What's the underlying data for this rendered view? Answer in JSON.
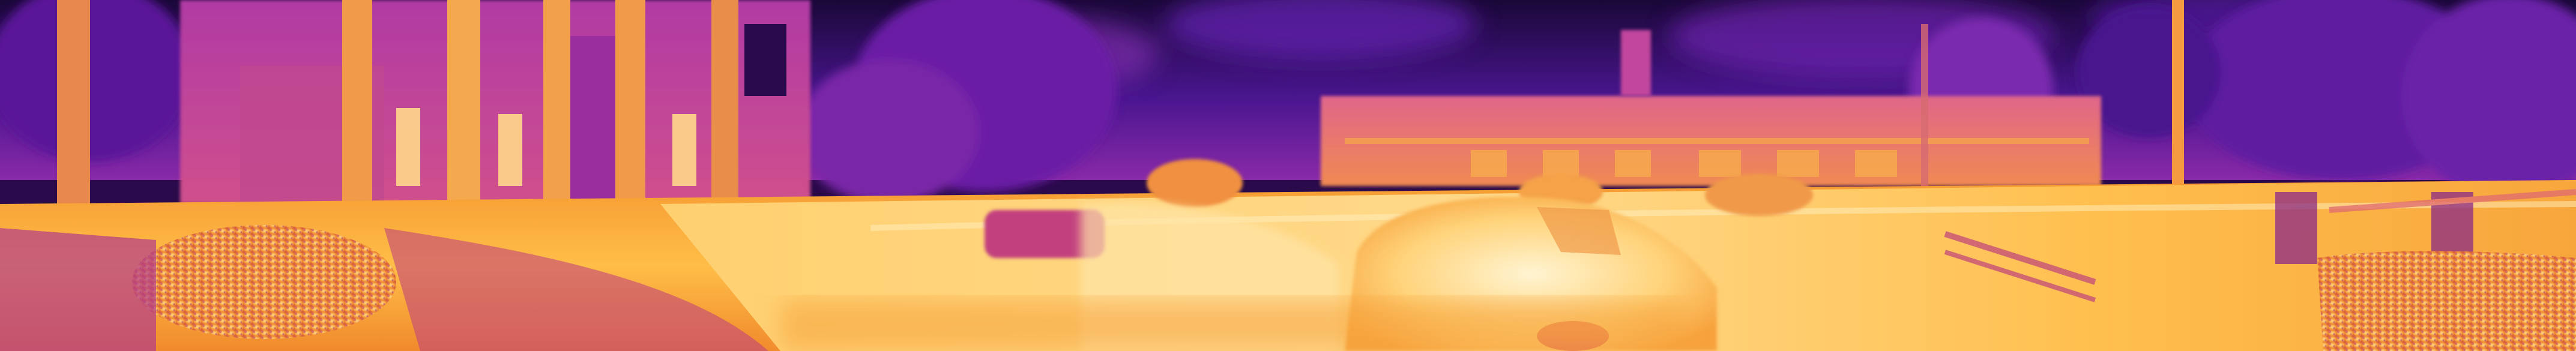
{
  "image": {
    "kind": "thermal-infrared panorama",
    "palette": {
      "cold": "#1b0a3a",
      "cool": "#6a1fb0",
      "mid": "#b23aa8",
      "warm": "#f07a2a",
      "hot": "#ffc24a",
      "hottest": "#fff3c8"
    },
    "objects": [
      "night-sky",
      "trees",
      "building-with-columns",
      "parked-car",
      "moving-car",
      "road",
      "sidewalk",
      "gravel-bed",
      "street-lamp-pole",
      "low-building-far",
      "fence-rail"
    ]
  }
}
